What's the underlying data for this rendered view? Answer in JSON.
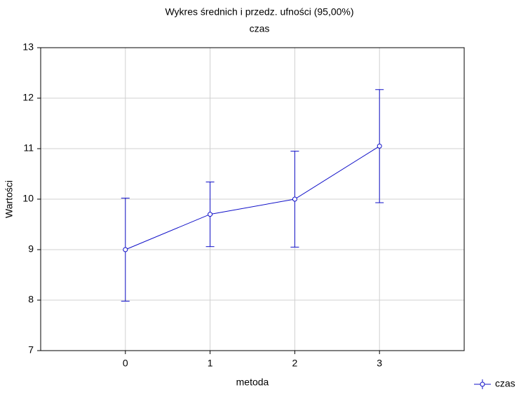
{
  "chart_data": {
    "type": "line",
    "title": "Wykres średnich i przedz. ufności (95,00%)",
    "subtitle": "czas",
    "x_label": "metoda",
    "y_label": "Wartości",
    "x": [
      0,
      1,
      2,
      3
    ],
    "series": [
      {
        "name": "czas",
        "color": "#1010c8",
        "values": [
          9.0,
          9.7,
          10.0,
          11.05
        ],
        "errors": [
          1.02,
          0.64,
          0.95,
          1.12
        ]
      }
    ],
    "xlim": [
      -1,
      4
    ],
    "xticks": [
      0,
      1,
      2,
      3
    ],
    "ylim": [
      7,
      13
    ],
    "yticks": [
      7,
      8,
      9,
      10,
      11,
      12,
      13
    ],
    "grid": true,
    "legend": "bottom-right"
  }
}
